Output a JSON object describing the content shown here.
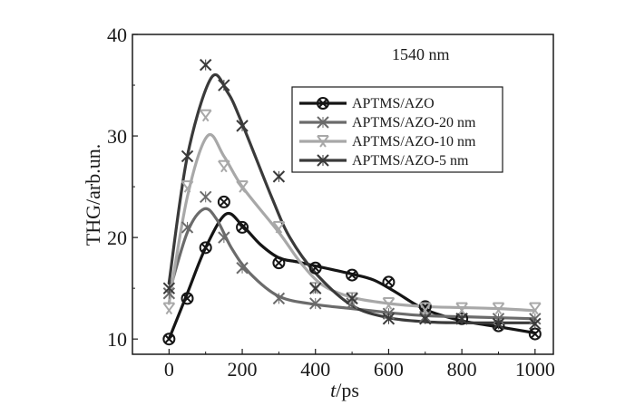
{
  "chart_data": {
    "type": "line",
    "title": "",
    "annotation": "1540 nm",
    "xlabel_italic": "t",
    "xlabel_unit": "/ps",
    "ylabel": "THG/arb.un.",
    "xlim": [
      -100,
      1050
    ],
    "ylim": [
      8.5,
      40
    ],
    "xticks": [
      0,
      200,
      400,
      600,
      800,
      1000
    ],
    "yticks": [
      10,
      20,
      30,
      40
    ],
    "legend_position": "upper-right",
    "series": [
      {
        "name": "APTMS/AZO",
        "color": "#151515",
        "marker": "circle-x",
        "x": [
          0,
          50,
          100,
          150,
          200,
          300,
          400,
          500,
          600,
          700,
          800,
          900,
          1000
        ],
        "y": [
          10,
          14,
          19,
          23.5,
          21,
          17.5,
          17,
          16.3,
          15.6,
          13.2,
          12,
          11.3,
          10.5
        ],
        "curve": [
          [
            0,
            10
          ],
          [
            50,
            14.5
          ],
          [
            100,
            19
          ],
          [
            155,
            22.3
          ],
          [
            200,
            21.2
          ],
          [
            250,
            19.3
          ],
          [
            300,
            18
          ],
          [
            350,
            17.6
          ],
          [
            400,
            17.2
          ],
          [
            500,
            16.4
          ],
          [
            560,
            15.8
          ],
          [
            620,
            14.6
          ],
          [
            700,
            12.9
          ],
          [
            800,
            11.8
          ],
          [
            900,
            11.2
          ],
          [
            1000,
            10.6
          ]
        ]
      },
      {
        "name": "APTMS/AZO-20 nm",
        "color": "#6b6b6b",
        "marker": "x",
        "x": [
          0,
          50,
          100,
          150,
          200,
          300,
          400,
          500,
          600,
          700,
          800,
          900,
          1000
        ],
        "y": [
          14.5,
          21,
          24,
          20,
          17,
          14,
          13.5,
          13.5,
          12.5,
          12.2,
          12,
          12,
          12
        ],
        "curve": [
          [
            0,
            14.5
          ],
          [
            50,
            20.5
          ],
          [
            95,
            22.8
          ],
          [
            130,
            21.8
          ],
          [
            170,
            19
          ],
          [
            220,
            16.5
          ],
          [
            300,
            14.2
          ],
          [
            400,
            13.4
          ],
          [
            500,
            13
          ],
          [
            600,
            12.6
          ],
          [
            700,
            12.3
          ],
          [
            800,
            12.2
          ],
          [
            900,
            12.1
          ],
          [
            1000,
            12
          ]
        ]
      },
      {
        "name": "APTMS/AZO-10 nm",
        "color": "#a8a8a8",
        "marker": "tri",
        "x": [
          0,
          50,
          100,
          150,
          200,
          300,
          400,
          500,
          600,
          700,
          800,
          900,
          1000
        ],
        "y": [
          13,
          25,
          32,
          27,
          25,
          21,
          15,
          14,
          13.5,
          13,
          13,
          13,
          13
        ],
        "curve": [
          [
            0,
            13.5
          ],
          [
            50,
            24
          ],
          [
            105,
            30
          ],
          [
            150,
            28
          ],
          [
            200,
            25
          ],
          [
            300,
            20.5
          ],
          [
            360,
            17.5
          ],
          [
            420,
            15.3
          ],
          [
            500,
            14.1
          ],
          [
            600,
            13.5
          ],
          [
            700,
            13.2
          ],
          [
            800,
            13.1
          ],
          [
            900,
            13
          ],
          [
            1000,
            12.8
          ]
        ]
      },
      {
        "name": "APTMS/AZO-5 nm",
        "color": "#3a3a3a",
        "marker": "x",
        "x": [
          0,
          50,
          100,
          150,
          200,
          300,
          400,
          500,
          600,
          700,
          800,
          900,
          1000
        ],
        "y": [
          15,
          28,
          37,
          35,
          31,
          26,
          15,
          14,
          12,
          12,
          12,
          11.5,
          11.5
        ],
        "curve": [
          [
            0,
            15.5
          ],
          [
            50,
            28
          ],
          [
            115,
            35.7
          ],
          [
            160,
            34.3
          ],
          [
            200,
            31.2
          ],
          [
            280,
            24
          ],
          [
            330,
            20
          ],
          [
            400,
            16.5
          ],
          [
            500,
            13.3
          ],
          [
            600,
            12.1
          ],
          [
            700,
            11.7
          ],
          [
            800,
            11.6
          ],
          [
            900,
            11.6
          ],
          [
            1000,
            11.6
          ]
        ]
      }
    ]
  }
}
